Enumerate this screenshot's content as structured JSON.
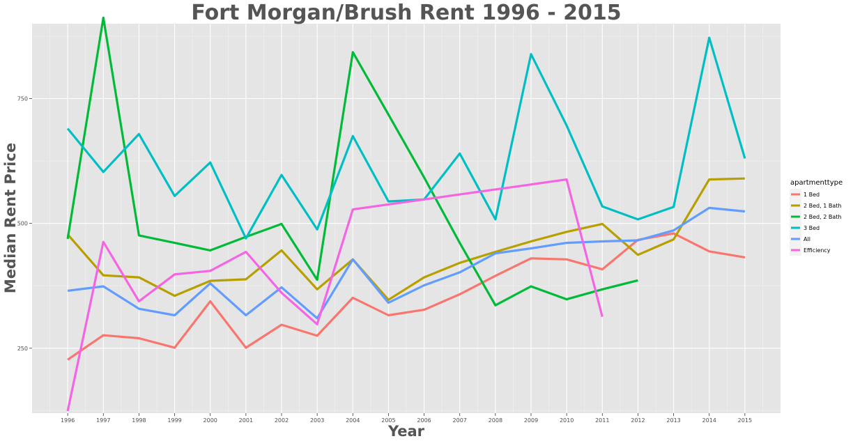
{
  "chart_data": {
    "type": "line",
    "title": "Fort Morgan/Brush Rent 1996 - 2015",
    "xlabel": "Year",
    "ylabel": "Median Rent Price",
    "x": [
      1996,
      1997,
      1998,
      1999,
      2000,
      2001,
      2002,
      2003,
      2004,
      2005,
      2006,
      2007,
      2008,
      2009,
      2010,
      2011,
      2012,
      2013,
      2014,
      2015
    ],
    "xlim": [
      1995,
      2016
    ],
    "ylim": [
      120,
      900
    ],
    "yticks": [
      250,
      500,
      750
    ],
    "grid": true,
    "legend": {
      "title": "apartmenttype",
      "position": "right"
    },
    "series": [
      {
        "name": "1 Bed",
        "color": "#F8766D",
        "values": [
          227,
          276,
          270,
          251,
          344,
          251,
          297,
          275,
          351,
          316,
          327,
          358,
          395,
          430,
          428,
          408,
          467,
          480,
          444,
          432
        ]
      },
      {
        "name": "2 Bed, 1 Bath",
        "color": "#B79F00",
        "values": [
          478,
          396,
          392,
          355,
          385,
          388,
          446,
          368,
          428,
          347,
          392,
          421,
          443,
          464,
          483,
          499,
          437,
          468,
          588,
          590
        ]
      },
      {
        "name": "2 Bed, 2 Bath",
        "color": "#00BA38",
        "values": [
          469,
          912,
          476,
          461,
          446,
          473,
          499,
          387,
          843,
          718,
          592,
          461,
          336,
          374,
          348,
          368,
          386,
          null,
          null,
          null
        ]
      },
      {
        "name": "3 Bed",
        "color": "#00BFC4",
        "values": [
          690,
          603,
          679,
          555,
          622,
          470,
          597,
          488,
          675,
          544,
          548,
          640,
          508,
          839,
          696,
          534,
          508,
          533,
          872,
          630
        ]
      },
      {
        "name": "All",
        "color": "#619CFF",
        "values": [
          365,
          374,
          329,
          316,
          380,
          316,
          372,
          310,
          428,
          341,
          376,
          402,
          440,
          450,
          461,
          464,
          466,
          486,
          531,
          524
        ]
      },
      {
        "name": "Efficiency",
        "color": "#F564E3",
        "values": [
          124,
          463,
          344,
          398,
          405,
          443,
          361,
          298,
          528,
          538,
          548,
          558,
          568,
          578,
          588,
          313,
          null,
          null,
          null,
          null
        ]
      }
    ]
  }
}
